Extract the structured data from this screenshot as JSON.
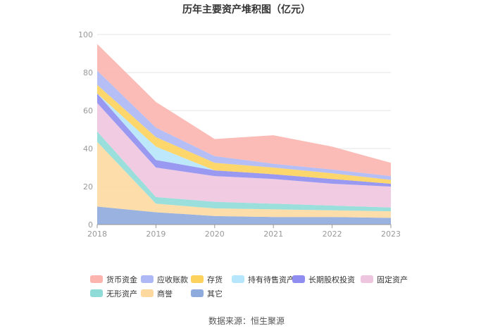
{
  "chart_data": {
    "type": "area",
    "stacked": true,
    "title": "历年主要资产堆积图（亿元）",
    "categories": [
      "2018",
      "2019",
      "2020",
      "2021",
      "2022",
      "2023"
    ],
    "ylim": [
      0,
      100
    ],
    "yticks": [
      "0",
      "20",
      "40",
      "60",
      "80",
      "100"
    ],
    "legend_position": "bottom",
    "source": "数据来源：恒生聚源",
    "series": [
      {
        "name": "其它",
        "color": "#8faadc",
        "values": [
          9.5,
          6.5,
          4.5,
          4.0,
          4.0,
          3.5
        ]
      },
      {
        "name": "商誉",
        "color": "#fdd9a0",
        "values": [
          34.0,
          4.5,
          4.0,
          4.0,
          3.5,
          3.5
        ]
      },
      {
        "name": "无形资产",
        "color": "#8fdbd8",
        "values": [
          5.5,
          3.5,
          3.5,
          3.0,
          2.5,
          2.0
        ]
      },
      {
        "name": "固定资产",
        "color": "#eec5df",
        "values": [
          15.0,
          15.5,
          13.5,
          13.0,
          11.5,
          11.0
        ]
      },
      {
        "name": "长期股权投资",
        "color": "#8f8ef0",
        "values": [
          5.0,
          4.0,
          3.0,
          2.5,
          2.5,
          1.5
        ]
      },
      {
        "name": "持有待售资产",
        "color": "#b6e6fb",
        "values": [
          0,
          7.0,
          0,
          0,
          0,
          0
        ]
      },
      {
        "name": "存货",
        "color": "#fdd25c",
        "values": [
          4.5,
          5.0,
          4.0,
          3.5,
          3.0,
          2.0
        ]
      },
      {
        "name": "应收账款",
        "color": "#adb8f4",
        "values": [
          7.5,
          5.0,
          3.5,
          2.0,
          2.0,
          2.0
        ]
      },
      {
        "name": "货币资金",
        "color": "#fbb4ae",
        "values": [
          14.0,
          13.5,
          9.0,
          15.0,
          12.0,
          7.0
        ]
      }
    ],
    "legend_order": [
      "货币资金",
      "应收账款",
      "存货",
      "持有待售资产",
      "长期股权投资",
      "固定资产",
      "无形资产",
      "商誉",
      "其它"
    ]
  }
}
